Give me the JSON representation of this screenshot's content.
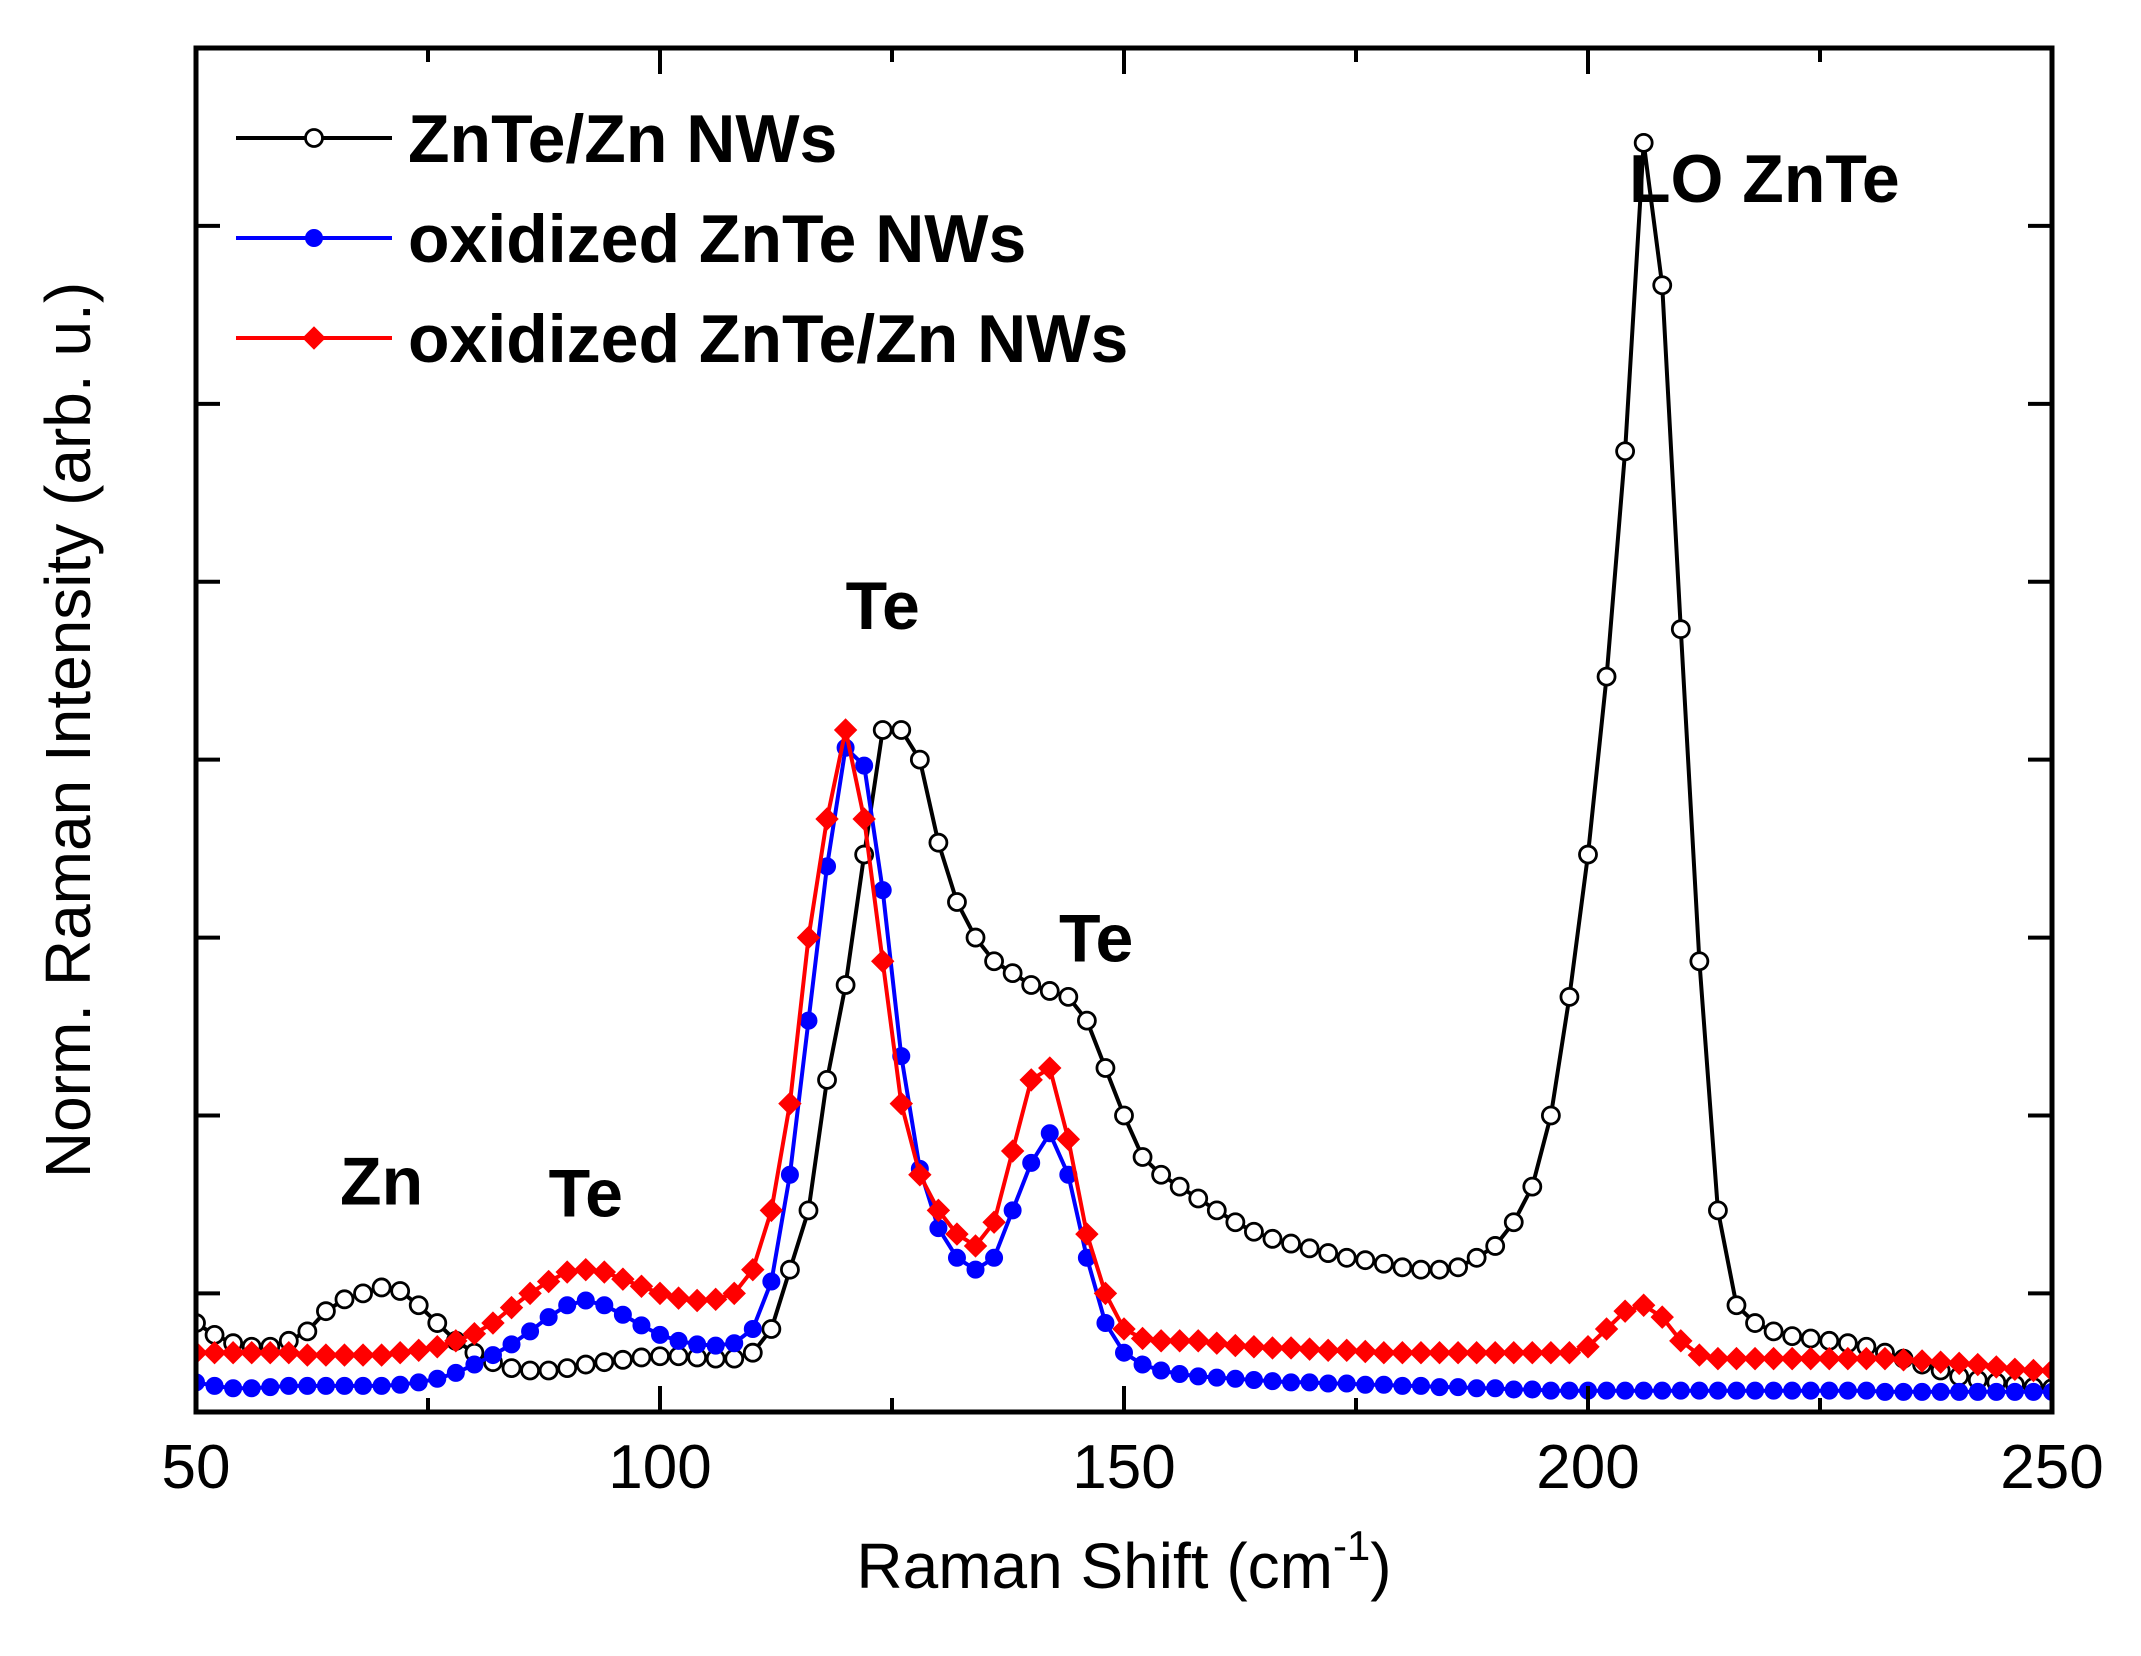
{
  "chart_data": {
    "type": "line",
    "xlabel": "Raman Shift (cm",
    "xlabel_superscript": "-1",
    "xlabel_suffix": ")",
    "ylabel": "Norm. Raman Intensity (arb. u.)",
    "xlim": [
      50,
      250
    ],
    "ylim": [
      0,
      1.15
    ],
    "x_ticks": [
      50,
      100,
      150,
      200,
      250
    ],
    "x_minor_ticks": [
      75,
      125,
      175,
      225
    ],
    "y_tick_values": [
      0.1,
      0.25,
      0.4,
      0.55,
      0.7,
      0.85,
      1.0
    ],
    "y_tick_labels_shown": false,
    "legend_position": "top-left",
    "series": [
      {
        "name": "ZnTe/Zn NWs",
        "color": "#000000",
        "marker": "open-circle",
        "x": [
          50,
          52,
          54,
          56,
          58,
          60,
          62,
          64,
          66,
          68,
          70,
          72,
          74,
          76,
          78,
          80,
          82,
          84,
          86,
          88,
          90,
          92,
          94,
          96,
          98,
          100,
          102,
          104,
          106,
          108,
          110,
          112,
          114,
          116,
          118,
          120,
          122,
          124,
          126,
          128,
          130,
          132,
          134,
          136,
          138,
          140,
          142,
          144,
          146,
          148,
          150,
          152,
          154,
          156,
          158,
          160,
          162,
          164,
          166,
          168,
          170,
          172,
          174,
          176,
          178,
          180,
          182,
          184,
          186,
          188,
          190,
          192,
          194,
          196,
          198,
          200,
          202,
          204,
          206,
          208,
          210,
          212,
          214,
          216,
          218,
          220,
          222,
          224,
          226,
          228,
          230,
          232,
          234,
          236,
          238,
          240,
          242,
          244,
          246,
          248,
          250
        ],
        "y": [
          0.075,
          0.065,
          0.058,
          0.055,
          0.055,
          0.06,
          0.068,
          0.085,
          0.095,
          0.1,
          0.105,
          0.102,
          0.09,
          0.075,
          0.06,
          0.05,
          0.042,
          0.037,
          0.035,
          0.035,
          0.037,
          0.04,
          0.042,
          0.044,
          0.046,
          0.047,
          0.047,
          0.046,
          0.045,
          0.045,
          0.05,
          0.07,
          0.12,
          0.17,
          0.28,
          0.36,
          0.47,
          0.575,
          0.575,
          0.55,
          0.48,
          0.43,
          0.4,
          0.38,
          0.37,
          0.36,
          0.355,
          0.35,
          0.33,
          0.29,
          0.25,
          0.215,
          0.2,
          0.19,
          0.18,
          0.17,
          0.16,
          0.152,
          0.146,
          0.142,
          0.138,
          0.134,
          0.13,
          0.128,
          0.125,
          0.122,
          0.12,
          0.12,
          0.122,
          0.13,
          0.14,
          0.16,
          0.19,
          0.25,
          0.35,
          0.47,
          0.62,
          0.81,
          1.07,
          0.95,
          0.66,
          0.38,
          0.17,
          0.09,
          0.075,
          0.068,
          0.064,
          0.062,
          0.06,
          0.058,
          0.055,
          0.05,
          0.045,
          0.04,
          0.035,
          0.03,
          0.027,
          0.025,
          0.023,
          0.021,
          0.02
        ]
      },
      {
        "name": "oxidized ZnTe NWs",
        "color": "#0000ff",
        "marker": "filled-circle",
        "x": [
          50,
          52,
          54,
          56,
          58,
          60,
          62,
          64,
          66,
          68,
          70,
          72,
          74,
          76,
          78,
          80,
          82,
          84,
          86,
          88,
          90,
          92,
          94,
          96,
          98,
          100,
          102,
          104,
          106,
          108,
          110,
          112,
          114,
          116,
          118,
          120,
          122,
          124,
          126,
          128,
          130,
          132,
          134,
          136,
          138,
          140,
          142,
          144,
          146,
          148,
          150,
          152,
          154,
          156,
          158,
          160,
          162,
          164,
          166,
          168,
          170,
          172,
          174,
          176,
          178,
          180,
          182,
          184,
          186,
          188,
          190,
          192,
          194,
          196,
          198,
          200,
          202,
          204,
          206,
          208,
          210,
          212,
          214,
          216,
          218,
          220,
          222,
          224,
          226,
          228,
          230,
          232,
          234,
          236,
          238,
          240,
          242,
          244,
          246,
          248,
          250
        ],
        "y": [
          0.025,
          0.022,
          0.02,
          0.02,
          0.021,
          0.022,
          0.022,
          0.022,
          0.022,
          0.022,
          0.022,
          0.023,
          0.025,
          0.028,
          0.033,
          0.04,
          0.048,
          0.057,
          0.068,
          0.08,
          0.09,
          0.094,
          0.09,
          0.082,
          0.073,
          0.065,
          0.06,
          0.057,
          0.056,
          0.058,
          0.07,
          0.11,
          0.2,
          0.33,
          0.46,
          0.56,
          0.545,
          0.44,
          0.3,
          0.205,
          0.155,
          0.13,
          0.12,
          0.13,
          0.17,
          0.21,
          0.235,
          0.2,
          0.13,
          0.075,
          0.05,
          0.04,
          0.035,
          0.032,
          0.03,
          0.029,
          0.028,
          0.027,
          0.026,
          0.025,
          0.025,
          0.024,
          0.024,
          0.023,
          0.023,
          0.022,
          0.022,
          0.021,
          0.021,
          0.02,
          0.02,
          0.019,
          0.019,
          0.018,
          0.018,
          0.018,
          0.018,
          0.018,
          0.018,
          0.018,
          0.018,
          0.018,
          0.018,
          0.018,
          0.018,
          0.018,
          0.018,
          0.018,
          0.018,
          0.018,
          0.018,
          0.017,
          0.017,
          0.017,
          0.017,
          0.017,
          0.017,
          0.017,
          0.017,
          0.017,
          0.017
        ]
      },
      {
        "name": "oxidized ZnTe/Zn NWs",
        "color": "#ff0000",
        "marker": "filled-diamond",
        "x": [
          50,
          52,
          54,
          56,
          58,
          60,
          62,
          64,
          66,
          68,
          70,
          72,
          74,
          76,
          78,
          80,
          82,
          84,
          86,
          88,
          90,
          92,
          94,
          96,
          98,
          100,
          102,
          104,
          106,
          108,
          110,
          112,
          114,
          116,
          118,
          120,
          122,
          124,
          126,
          128,
          130,
          132,
          134,
          136,
          138,
          140,
          142,
          144,
          146,
          148,
          150,
          152,
          154,
          156,
          158,
          160,
          162,
          164,
          166,
          168,
          170,
          172,
          174,
          176,
          178,
          180,
          182,
          184,
          186,
          188,
          190,
          192,
          194,
          196,
          198,
          200,
          202,
          204,
          206,
          208,
          210,
          212,
          214,
          216,
          218,
          220,
          222,
          224,
          226,
          228,
          230,
          232,
          234,
          236,
          238,
          240,
          242,
          244,
          246,
          248,
          250
        ],
        "y": [
          0.05,
          0.05,
          0.05,
          0.05,
          0.05,
          0.05,
          0.048,
          0.048,
          0.048,
          0.048,
          0.048,
          0.05,
          0.052,
          0.055,
          0.06,
          0.066,
          0.075,
          0.088,
          0.1,
          0.11,
          0.118,
          0.12,
          0.118,
          0.112,
          0.106,
          0.1,
          0.096,
          0.094,
          0.095,
          0.1,
          0.12,
          0.17,
          0.26,
          0.4,
          0.5,
          0.575,
          0.5,
          0.38,
          0.26,
          0.2,
          0.17,
          0.15,
          0.14,
          0.16,
          0.22,
          0.28,
          0.29,
          0.23,
          0.15,
          0.1,
          0.07,
          0.062,
          0.06,
          0.06,
          0.06,
          0.058,
          0.056,
          0.055,
          0.054,
          0.054,
          0.053,
          0.052,
          0.052,
          0.051,
          0.05,
          0.05,
          0.05,
          0.05,
          0.05,
          0.05,
          0.05,
          0.05,
          0.05,
          0.05,
          0.05,
          0.055,
          0.07,
          0.085,
          0.09,
          0.08,
          0.06,
          0.048,
          0.045,
          0.045,
          0.045,
          0.045,
          0.045,
          0.045,
          0.045,
          0.045,
          0.045,
          0.045,
          0.044,
          0.043,
          0.042,
          0.041,
          0.04,
          0.038,
          0.036,
          0.035,
          0.035
        ]
      }
    ],
    "annotations": [
      {
        "text": "Zn",
        "x": 70,
        "y": 0.175
      },
      {
        "text": "Te",
        "x": 92,
        "y": 0.165
      },
      {
        "text": "Te",
        "x": 124,
        "y": 0.66
      },
      {
        "text": "Te",
        "x": 147,
        "y": 0.38
      },
      {
        "text": "LO ZnTe",
        "x": 219,
        "y": 1.02
      }
    ]
  }
}
